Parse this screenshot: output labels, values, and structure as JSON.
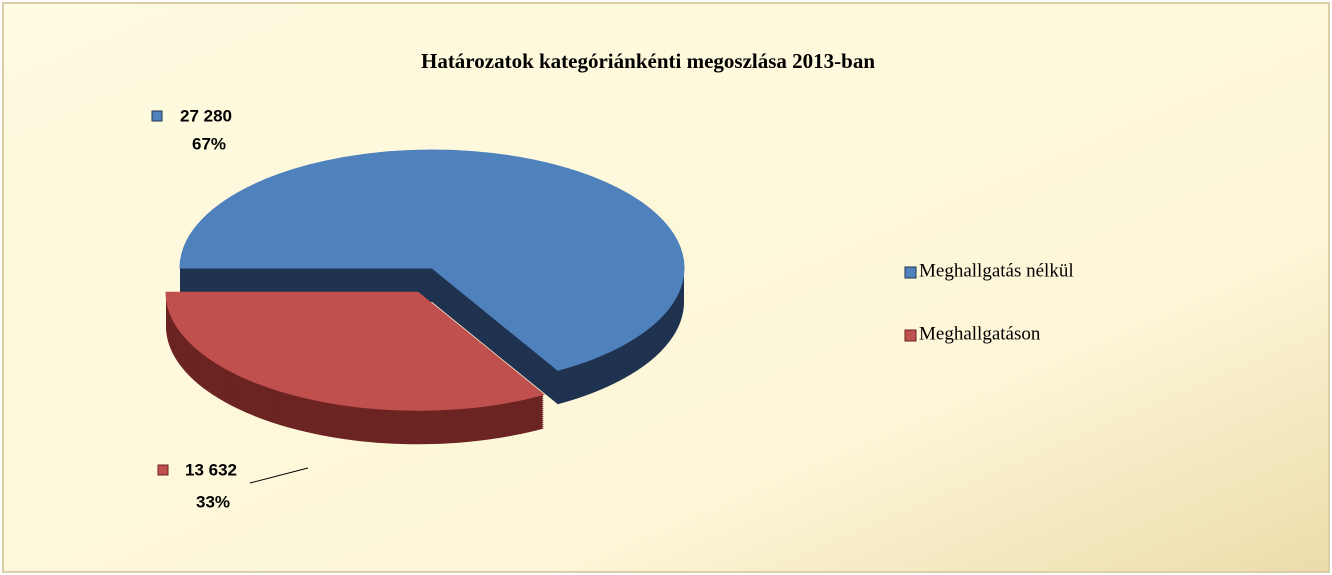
{
  "chart_data": {
    "type": "pie3d",
    "title": "Határozatok kategóriánkénti megoszlása 2013-ban",
    "categories": [
      "Meghallgatás nélkül",
      "Meghallgatáson"
    ],
    "values": [
      27280,
      13632
    ],
    "value_labels": [
      "27 280",
      "13 632"
    ],
    "percent_labels": [
      "67%",
      "33%"
    ],
    "colors": [
      "#4f81bd",
      "#c0504d"
    ],
    "side_colors": [
      "#1f3350",
      "#6b2422"
    ],
    "legend": "right"
  }
}
